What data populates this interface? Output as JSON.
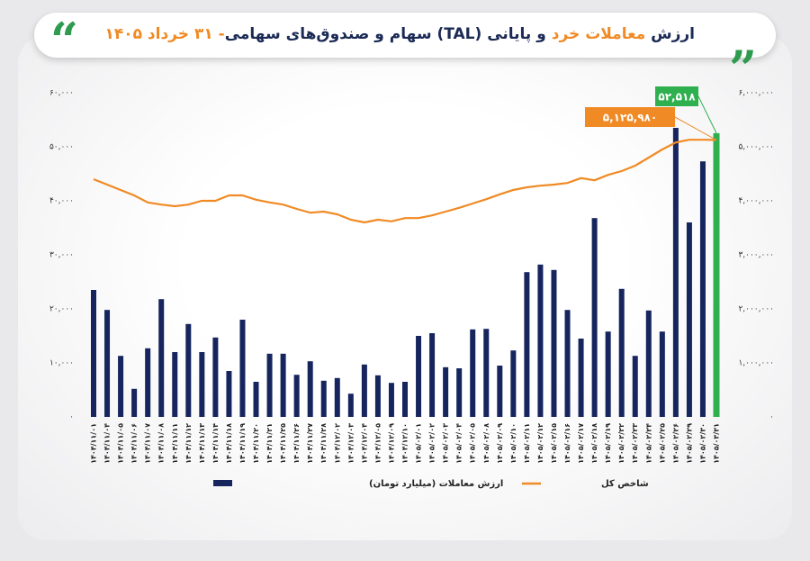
{
  "chart_data": {
    "type": "bar_line",
    "title": [
      {
        "text": "ارزش ",
        "color": "#1b2a55"
      },
      {
        "text": "معاملات خرد",
        "color": "#f08a24"
      },
      {
        "text": " و پایانی (TAL) سهام و صندوق‌های سهامی",
        "color": "#1b2a55"
      },
      {
        "text": "- ۳۱ خرداد ۱۴۰۵",
        "color": "#f08a24"
      }
    ],
    "categories": [
      "۱۴۰۴/۱۱/۰۱",
      "۱۴۰۴/۱۱/۰۴",
      "۱۴۰۴/۱۱/۰۵",
      "۱۴۰۴/۱۱/۰۶",
      "۱۴۰۴/۱۱/۰۷",
      "۱۴۰۴/۱۱/۰۸",
      "۱۴۰۴/۱۱/۱۱",
      "۱۴۰۴/۱۱/۱۲",
      "۱۴۰۴/۱۱/۱۳",
      "۱۴۰۴/۱۱/۱۴",
      "۱۴۰۴/۱۱/۱۸",
      "۱۴۰۴/۱۱/۱۹",
      "۱۴۰۴/۱۱/۲۰",
      "۱۴۰۴/۱۱/۲۱",
      "۱۴۰۴/۱۱/۲۵",
      "۱۴۰۴/۱۱/۲۶",
      "۱۴۰۴/۱۱/۲۷",
      "۱۴۰۴/۱۱/۲۸",
      "۱۴۰۴/۱۲/۰۲",
      "۱۴۰۴/۱۲/۰۳",
      "۱۴۰۴/۱۲/۰۴",
      "۱۴۰۴/۱۲/۰۵",
      "۱۴۰۴/۱۲/۰۹",
      "۱۴۰۴/۱۲/۱۰",
      "۱۴۰۵/۰۲/۰۱",
      "۱۴۰۵/۰۲/۰۲",
      "۱۴۰۵/۰۲/۰۳",
      "۱۴۰۵/۰۲/۰۴",
      "۱۴۰۵/۰۲/۰۵",
      "۱۴۰۵/۰۲/۰۸",
      "۱۴۰۵/۰۲/۰۹",
      "۱۴۰۵/۰۲/۱۰",
      "۱۴۰۵/۰۲/۱۱",
      "۱۴۰۵/۰۲/۱۲",
      "۱۴۰۵/۰۲/۱۵",
      "۱۴۰۵/۰۲/۱۶",
      "۱۴۰۵/۰۲/۱۷",
      "۱۴۰۵/۰۲/۱۸",
      "۱۴۰۵/۰۲/۱۹",
      "۱۴۰۵/۰۲/۲۲",
      "۱۴۰۵/۰۲/۲۳",
      "۱۴۰۵/۰۲/۲۴",
      "۱۴۰۵/۰۲/۲۵",
      "۱۴۰۵/۰۲/۲۶",
      "۱۴۰۵/۰۲/۲۹",
      "۱۴۰۵/۰۲/۳۰",
      "۱۴۰۵/۰۳/۳۱"
    ],
    "series": [
      {
        "name": "ارزش معاملات (میلیارد تومان)",
        "type": "bar",
        "color": "#17255e",
        "highlight_color": "#2eb04f",
        "values": [
          23500,
          19800,
          11300,
          5200,
          12700,
          21800,
          12000,
          17200,
          12000,
          14700,
          8500,
          18000,
          6500,
          11700,
          11700,
          7800,
          10300,
          6700,
          7200,
          4300,
          9700,
          7700,
          6300,
          6500,
          15000,
          15500,
          9200,
          9000,
          16200,
          16300,
          9500,
          12300,
          26800,
          28200,
          27200,
          19800,
          14500,
          36800,
          15800,
          23700,
          11300,
          19700,
          15800,
          53500,
          36000,
          47300,
          52518
        ],
        "value_labels": [
          null,
          null,
          null,
          null,
          null,
          null,
          null,
          null,
          null,
          null,
          null,
          null,
          null,
          null,
          null,
          null,
          null,
          null,
          null,
          null,
          null,
          null,
          null,
          null,
          null,
          null,
          null,
          null,
          null,
          null,
          null,
          null,
          null,
          null,
          null,
          null,
          null,
          null,
          null,
          null,
          null,
          null,
          null,
          null,
          null,
          null,
          "۵۲,۵۱۸"
        ]
      },
      {
        "name": "شاخص کل",
        "type": "line",
        "axis": "y2",
        "color": "#f08a24",
        "values": [
          4400000,
          4300000,
          4200000,
          4100000,
          3970000,
          3930000,
          3900000,
          3930000,
          4000000,
          4000000,
          4100000,
          4100000,
          4020000,
          3970000,
          3930000,
          3850000,
          3780000,
          3800000,
          3750000,
          3650000,
          3600000,
          3650000,
          3620000,
          3680000,
          3680000,
          3730000,
          3800000,
          3870000,
          3950000,
          4030000,
          4120000,
          4200000,
          4250000,
          4280000,
          4300000,
          4330000,
          4420000,
          4380000,
          4480000,
          4550000,
          4650000,
          4800000,
          4950000,
          5080000,
          5130000,
          5130000,
          5125980
        ],
        "value_labels": [
          null,
          null,
          null,
          null,
          null,
          null,
          null,
          null,
          null,
          null,
          null,
          null,
          null,
          null,
          null,
          null,
          null,
          null,
          null,
          null,
          null,
          null,
          null,
          null,
          null,
          null,
          null,
          null,
          null,
          null,
          null,
          null,
          null,
          null,
          null,
          null,
          null,
          null,
          null,
          null,
          null,
          null,
          null,
          null,
          null,
          null,
          "۵,۱۲۵,۹۸۰"
        ]
      }
    ],
    "ylim": [
      0,
      60000
    ],
    "yticks": [
      {
        "value": 0,
        "label": "۰"
      },
      {
        "value": 10000,
        "label": "۱۰,۰۰۰"
      },
      {
        "value": 20000,
        "label": "۲۰,۰۰۰"
      },
      {
        "value": 30000,
        "label": "۳۰,۰۰۰"
      },
      {
        "value": 40000,
        "label": "۴۰,۰۰۰"
      },
      {
        "value": 50000,
        "label": "۵۰,۰۰۰"
      },
      {
        "value": 60000,
        "label": "۶۰,۰۰۰"
      }
    ],
    "y2lim": [
      0,
      6000000
    ],
    "y2ticks": [
      {
        "value": 0,
        "label": "۰"
      },
      {
        "value": 1000000,
        "label": "۱,۰۰۰,۰۰۰"
      },
      {
        "value": 2000000,
        "label": "۲,۰۰۰,۰۰۰"
      },
      {
        "value": 3000000,
        "label": "۳,۰۰۰,۰۰۰"
      },
      {
        "value": 4000000,
        "label": "۴,۰۰۰,۰۰۰"
      },
      {
        "value": 5000000,
        "label": "۵,۰۰۰,۰۰۰"
      },
      {
        "value": 6000000,
        "label": "۶,۰۰۰,۰۰۰"
      }
    ],
    "grid": false
  }
}
